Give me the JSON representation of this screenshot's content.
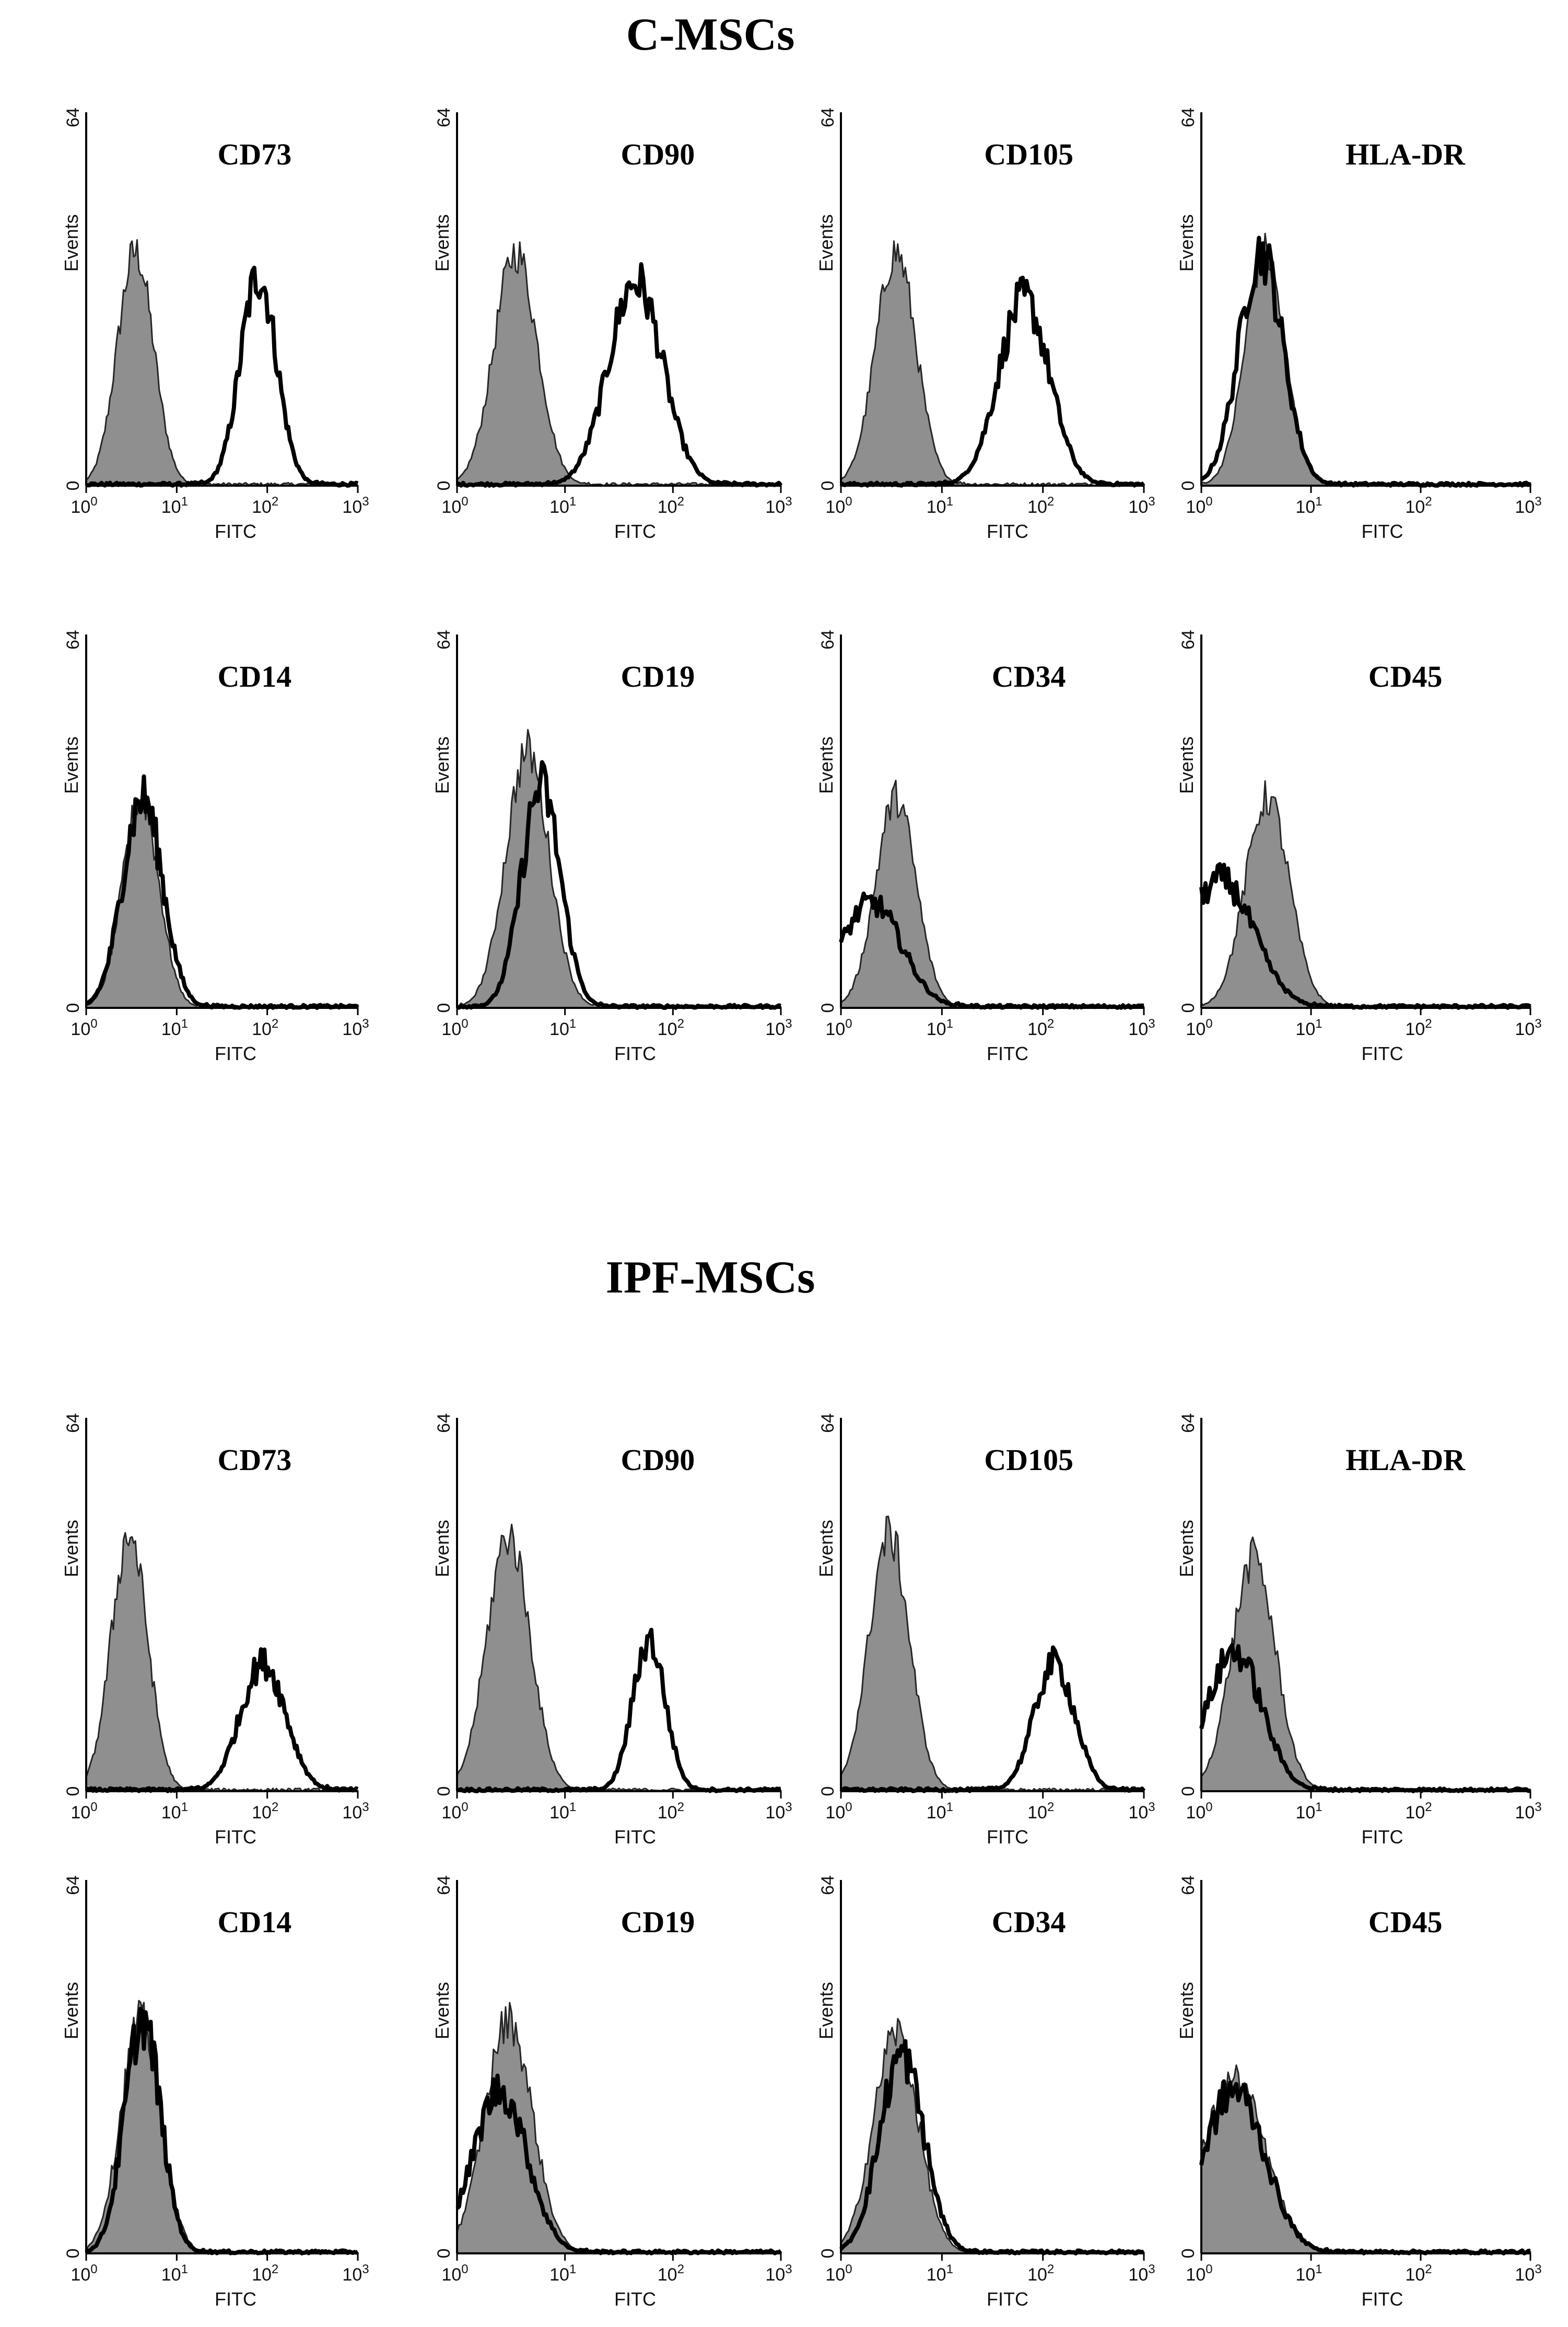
{
  "chart_data": {
    "type": "histogram",
    "panels_count": 16,
    "sections": [
      {
        "title": "C-MSCs",
        "panels": [
          {
            "marker": "CD73",
            "control_peak": 3.5,
            "control_height": 40,
            "antibody_peak": 80,
            "antibody_height": 36,
            "spread": 0.2,
            "ab_spread": 0.2
          },
          {
            "marker": "CD90",
            "control_peak": 3.5,
            "control_height": 40,
            "antibody_peak": 45,
            "antibody_height": 35,
            "spread": 0.2,
            "ab_spread": 0.25
          },
          {
            "marker": "CD105",
            "control_peak": 3.5,
            "control_height": 40,
            "antibody_peak": 65,
            "antibody_height": 32,
            "spread": 0.2,
            "ab_spread": 0.25
          },
          {
            "marker": "HLA-DR",
            "control_peak": 3.8,
            "control_height": 40,
            "antibody_peak": 3.5,
            "antibody_height": 40,
            "spread": 0.18,
            "ab_spread": 0.2
          },
          {
            "marker": "CD14",
            "control_peak": 4.0,
            "control_height": 36,
            "antibody_peak": 4.2,
            "antibody_height": 36,
            "spread": 0.2,
            "ab_spread": 0.22
          },
          {
            "marker": "CD19",
            "control_peak": 4.5,
            "control_height": 44,
            "antibody_peak": 6.0,
            "antibody_height": 38,
            "spread": 0.2,
            "ab_spread": 0.18
          },
          {
            "marker": "CD34",
            "control_peak": 3.5,
            "control_height": 36,
            "antibody_peak": 2.0,
            "antibody_height": 18,
            "spread": 0.2,
            "ab_spread": 0.3
          },
          {
            "marker": "CD45",
            "control_peak": 4.0,
            "control_height": 36,
            "antibody_peak": 1.5,
            "antibody_height": 22,
            "spread": 0.2,
            "ab_spread": 0.3
          }
        ]
      },
      {
        "title": "IPF-MSCs",
        "panels": [
          {
            "marker": "CD73",
            "control_peak": 3.0,
            "control_height": 44,
            "antibody_peak": 90,
            "antibody_height": 22,
            "spread": 0.2,
            "ab_spread": 0.25
          },
          {
            "marker": "CD90",
            "control_peak": 3.0,
            "control_height": 44,
            "antibody_peak": 60,
            "antibody_height": 26,
            "spread": 0.2,
            "ab_spread": 0.15
          },
          {
            "marker": "CD105",
            "control_peak": 3.0,
            "control_height": 44,
            "antibody_peak": 130,
            "antibody_height": 22,
            "spread": 0.2,
            "ab_spread": 0.2
          },
          {
            "marker": "HLA-DR",
            "control_peak": 3.0,
            "control_height": 40,
            "antibody_peak": 2.0,
            "antibody_height": 24,
            "spread": 0.2,
            "ab_spread": 0.25
          },
          {
            "marker": "CD14",
            "control_peak": 4.0,
            "control_height": 40,
            "antibody_peak": 4.2,
            "antibody_height": 40,
            "spread": 0.22,
            "ab_spread": 0.2
          },
          {
            "marker": "CD19",
            "control_peak": 3.0,
            "control_height": 40,
            "antibody_peak": 2.5,
            "antibody_height": 28,
            "spread": 0.22,
            "ab_spread": 0.25
          },
          {
            "marker": "CD34",
            "control_peak": 3.5,
            "control_height": 38,
            "antibody_peak": 4.0,
            "antibody_height": 34,
            "spread": 0.22,
            "ab_spread": 0.22
          },
          {
            "marker": "CD45",
            "control_peak": 2.0,
            "control_height": 30,
            "antibody_peak": 2.0,
            "antibody_height": 28,
            "spread": 0.28,
            "ab_spread": 0.28
          }
        ]
      }
    ],
    "x_axis": {
      "label": "FITC",
      "scale": "log",
      "range": [
        1,
        1000
      ],
      "tick_base": "10",
      "tick_exponents": [
        "0",
        "1",
        "2",
        "3"
      ]
    },
    "y_axis": {
      "label": "Events",
      "range": [
        0,
        64
      ],
      "tick_labels": [
        "0",
        "64"
      ]
    },
    "legend": {
      "control": "filled grey histogram (isotype control)",
      "antibody": "black outline histogram (marker)"
    }
  }
}
